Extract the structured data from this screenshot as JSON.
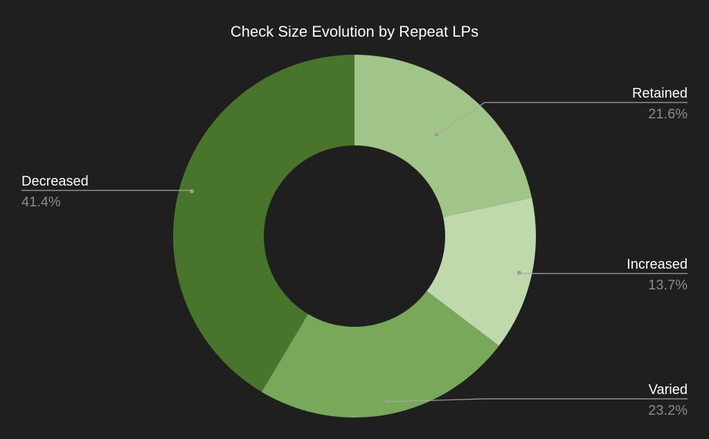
{
  "chart_data": {
    "type": "pie",
    "donut": true,
    "title": "Check Size Evolution by Repeat LPs",
    "slices": [
      {
        "label": "Retained",
        "value": 21.6,
        "value_label": "21.6%",
        "color": "#a1c588"
      },
      {
        "label": "Increased",
        "value": 13.7,
        "value_label": "13.7%",
        "color": "#bfd9ad"
      },
      {
        "label": "Varied",
        "value": 23.2,
        "value_label": "23.2%",
        "color": "#79a85a"
      },
      {
        "label": "Decreased",
        "value": 41.4,
        "value_label": "41.4%",
        "color": "#48742c"
      }
    ],
    "start_angle_deg": 0,
    "direction": "clockwise",
    "legend": "none",
    "labels": "outside with leader lines",
    "background": "#1f1f1f"
  }
}
